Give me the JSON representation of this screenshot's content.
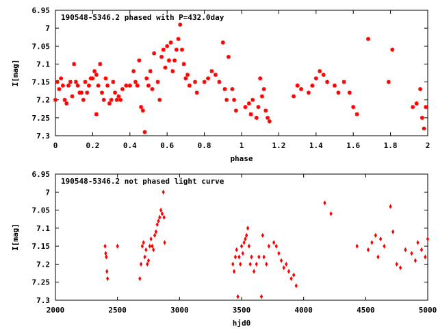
{
  "chart_data": [
    {
      "type": "scatter",
      "title": "190548-5346.2 phased with P=432.0day",
      "xlabel": "phase",
      "ylabel": "I[mag]",
      "xlim": [
        0,
        2
      ],
      "ylim": [
        6.95,
        7.3
      ],
      "y_inverted": true,
      "grid": false,
      "marker": "asterisk",
      "color": "#ff0000",
      "xticks": [
        "0",
        "0.2",
        "0.4",
        "0.6",
        "0.8",
        "1",
        "1.2",
        "1.4",
        "1.6",
        "1.8",
        "2"
      ],
      "yticks": [
        "6.95",
        "7",
        "7.05",
        "7.1",
        "7.15",
        "7.2",
        "7.25",
        "7.3"
      ],
      "points": [
        [
          0.0,
          7.2
        ],
        [
          0.01,
          7.15
        ],
        [
          0.02,
          7.17
        ],
        [
          0.03,
          7.14
        ],
        [
          0.04,
          7.16
        ],
        [
          0.05,
          7.2
        ],
        [
          0.06,
          7.21
        ],
        [
          0.07,
          7.16
        ],
        [
          0.08,
          7.15
        ],
        [
          0.09,
          7.19
        ],
        [
          0.1,
          7.1
        ],
        [
          0.11,
          7.15
        ],
        [
          0.12,
          7.16
        ],
        [
          0.13,
          7.18
        ],
        [
          0.14,
          7.18
        ],
        [
          0.15,
          7.2
        ],
        [
          0.16,
          7.15
        ],
        [
          0.17,
          7.18
        ],
        [
          0.18,
          7.16
        ],
        [
          0.19,
          7.14
        ],
        [
          0.2,
          7.14
        ],
        [
          0.21,
          7.12
        ],
        [
          0.22,
          7.13
        ],
        [
          0.22,
          7.24
        ],
        [
          0.23,
          7.16
        ],
        [
          0.24,
          7.1
        ],
        [
          0.25,
          7.18
        ],
        [
          0.26,
          7.2
        ],
        [
          0.27,
          7.14
        ],
        [
          0.28,
          7.16
        ],
        [
          0.29,
          7.21
        ],
        [
          0.3,
          7.2
        ],
        [
          0.31,
          7.15
        ],
        [
          0.32,
          7.18
        ],
        [
          0.33,
          7.2
        ],
        [
          0.34,
          7.19
        ],
        [
          0.35,
          7.2
        ],
        [
          0.36,
          7.17
        ],
        [
          0.38,
          7.16
        ],
        [
          0.4,
          7.16
        ],
        [
          0.42,
          7.12
        ],
        [
          0.43,
          7.15
        ],
        [
          0.44,
          7.16
        ],
        [
          0.45,
          7.09
        ],
        [
          0.46,
          7.22
        ],
        [
          0.47,
          7.23
        ],
        [
          0.48,
          7.29
        ],
        [
          0.49,
          7.14
        ],
        [
          0.5,
          7.16
        ],
        [
          0.51,
          7.12
        ],
        [
          0.52,
          7.17
        ],
        [
          0.53,
          7.07
        ],
        [
          0.55,
          7.15
        ],
        [
          0.56,
          7.2
        ],
        [
          0.57,
          7.08
        ],
        [
          0.58,
          7.06
        ],
        [
          0.59,
          7.11
        ],
        [
          0.6,
          7.05
        ],
        [
          0.61,
          7.09
        ],
        [
          0.62,
          7.04
        ],
        [
          0.63,
          7.12
        ],
        [
          0.64,
          7.09
        ],
        [
          0.65,
          7.06
        ],
        [
          0.66,
          7.03
        ],
        [
          0.67,
          6.99
        ],
        [
          0.68,
          7.06
        ],
        [
          0.69,
          7.1
        ],
        [
          0.7,
          7.14
        ],
        [
          0.71,
          7.13
        ],
        [
          0.72,
          7.16
        ],
        [
          0.75,
          7.15
        ],
        [
          0.76,
          7.18
        ],
        [
          0.8,
          7.15
        ],
        [
          0.82,
          7.14
        ],
        [
          0.84,
          7.12
        ],
        [
          0.86,
          7.13
        ],
        [
          0.88,
          7.15
        ],
        [
          0.9,
          7.04
        ],
        [
          0.91,
          7.17
        ],
        [
          0.92,
          7.2
        ],
        [
          0.93,
          7.08
        ],
        [
          0.95,
          7.17
        ],
        [
          0.96,
          7.2
        ],
        [
          0.97,
          7.23
        ],
        [
          1.02,
          7.22
        ],
        [
          1.04,
          7.21
        ],
        [
          1.05,
          7.24
        ],
        [
          1.06,
          7.2
        ],
        [
          1.08,
          7.25
        ],
        [
          1.09,
          7.22
        ],
        [
          1.1,
          7.14
        ],
        [
          1.11,
          7.19
        ],
        [
          1.12,
          7.17
        ],
        [
          1.13,
          7.23
        ],
        [
          1.14,
          7.25
        ],
        [
          1.15,
          7.26
        ],
        [
          1.28,
          7.19
        ],
        [
          1.3,
          7.16
        ],
        [
          1.32,
          7.17
        ],
        [
          1.36,
          7.18
        ],
        [
          1.38,
          7.16
        ],
        [
          1.4,
          7.14
        ],
        [
          1.42,
          7.12
        ],
        [
          1.44,
          7.13
        ],
        [
          1.46,
          7.15
        ],
        [
          1.5,
          7.16
        ],
        [
          1.52,
          7.18
        ],
        [
          1.55,
          7.15
        ],
        [
          1.58,
          7.18
        ],
        [
          1.6,
          7.22
        ],
        [
          1.62,
          7.24
        ],
        [
          1.68,
          7.03
        ],
        [
          1.79,
          7.15
        ],
        [
          1.81,
          7.06
        ],
        [
          1.92,
          7.22
        ],
        [
          1.94,
          7.21
        ],
        [
          1.96,
          7.17
        ],
        [
          1.97,
          7.25
        ],
        [
          1.98,
          7.28
        ],
        [
          1.99,
          7.22
        ]
      ]
    },
    {
      "type": "scatter",
      "title": "190548-5346.2 not phased light curve",
      "xlabel": "hjd0",
      "ylabel": "I[mag]",
      "xlim": [
        2000,
        5000
      ],
      "ylim": [
        6.95,
        7.3
      ],
      "y_inverted": true,
      "grid": false,
      "marker": "diamond",
      "color": "#ff0000",
      "xticks": [
        "2000",
        "2500",
        "3000",
        "3500",
        "4000",
        "4500",
        "5000"
      ],
      "yticks": [
        "6.95",
        "7",
        "7.05",
        "7.1",
        "7.15",
        "7.2",
        "7.25",
        "7.3"
      ],
      "points": [
        [
          2400,
          7.15
        ],
        [
          2405,
          7.17
        ],
        [
          2410,
          7.18
        ],
        [
          2415,
          7.22
        ],
        [
          2420,
          7.24
        ],
        [
          2500,
          7.15
        ],
        [
          2680,
          7.24
        ],
        [
          2690,
          7.2
        ],
        [
          2700,
          7.15
        ],
        [
          2710,
          7.14
        ],
        [
          2720,
          7.18
        ],
        [
          2730,
          7.16
        ],
        [
          2740,
          7.2
        ],
        [
          2750,
          7.19
        ],
        [
          2760,
          7.15
        ],
        [
          2770,
          7.13
        ],
        [
          2780,
          7.15
        ],
        [
          2790,
          7.16
        ],
        [
          2800,
          7.12
        ],
        [
          2810,
          7.11
        ],
        [
          2820,
          7.09
        ],
        [
          2830,
          7.08
        ],
        [
          2840,
          7.07
        ],
        [
          2850,
          7.05
        ],
        [
          2860,
          7.06
        ],
        [
          2870,
          7.0
        ],
        [
          2875,
          7.07
        ],
        [
          2880,
          7.14
        ],
        [
          3430,
          7.2
        ],
        [
          3440,
          7.22
        ],
        [
          3450,
          7.18
        ],
        [
          3460,
          7.16
        ],
        [
          3470,
          7.29
        ],
        [
          3480,
          7.18
        ],
        [
          3490,
          7.2
        ],
        [
          3500,
          7.15
        ],
        [
          3510,
          7.17
        ],
        [
          3520,
          7.14
        ],
        [
          3530,
          7.13
        ],
        [
          3540,
          7.12
        ],
        [
          3550,
          7.1
        ],
        [
          3560,
          7.15
        ],
        [
          3570,
          7.2
        ],
        [
          3580,
          7.18
        ],
        [
          3600,
          7.22
        ],
        [
          3620,
          7.2
        ],
        [
          3640,
          7.18
        ],
        [
          3660,
          7.29
        ],
        [
          3670,
          7.12
        ],
        [
          3680,
          7.18
        ],
        [
          3700,
          7.2
        ],
        [
          3720,
          7.15
        ],
        [
          3760,
          7.14
        ],
        [
          3780,
          7.15
        ],
        [
          3800,
          7.17
        ],
        [
          3820,
          7.19
        ],
        [
          3840,
          7.21
        ],
        [
          3860,
          7.2
        ],
        [
          3880,
          7.22
        ],
        [
          3900,
          7.24
        ],
        [
          3920,
          7.23
        ],
        [
          3940,
          7.26
        ],
        [
          4170,
          7.03
        ],
        [
          4220,
          7.06
        ],
        [
          4430,
          7.15
        ],
        [
          4520,
          7.16
        ],
        [
          4550,
          7.14
        ],
        [
          4580,
          7.12
        ],
        [
          4600,
          7.18
        ],
        [
          4620,
          7.13
        ],
        [
          4650,
          7.15
        ],
        [
          4700,
          7.04
        ],
        [
          4720,
          7.11
        ],
        [
          4750,
          7.2
        ],
        [
          4780,
          7.21
        ],
        [
          4820,
          7.16
        ],
        [
          4870,
          7.17
        ],
        [
          4900,
          7.19
        ],
        [
          4920,
          7.14
        ],
        [
          4950,
          7.16
        ],
        [
          4980,
          7.18
        ],
        [
          5000,
          7.13
        ]
      ]
    }
  ]
}
